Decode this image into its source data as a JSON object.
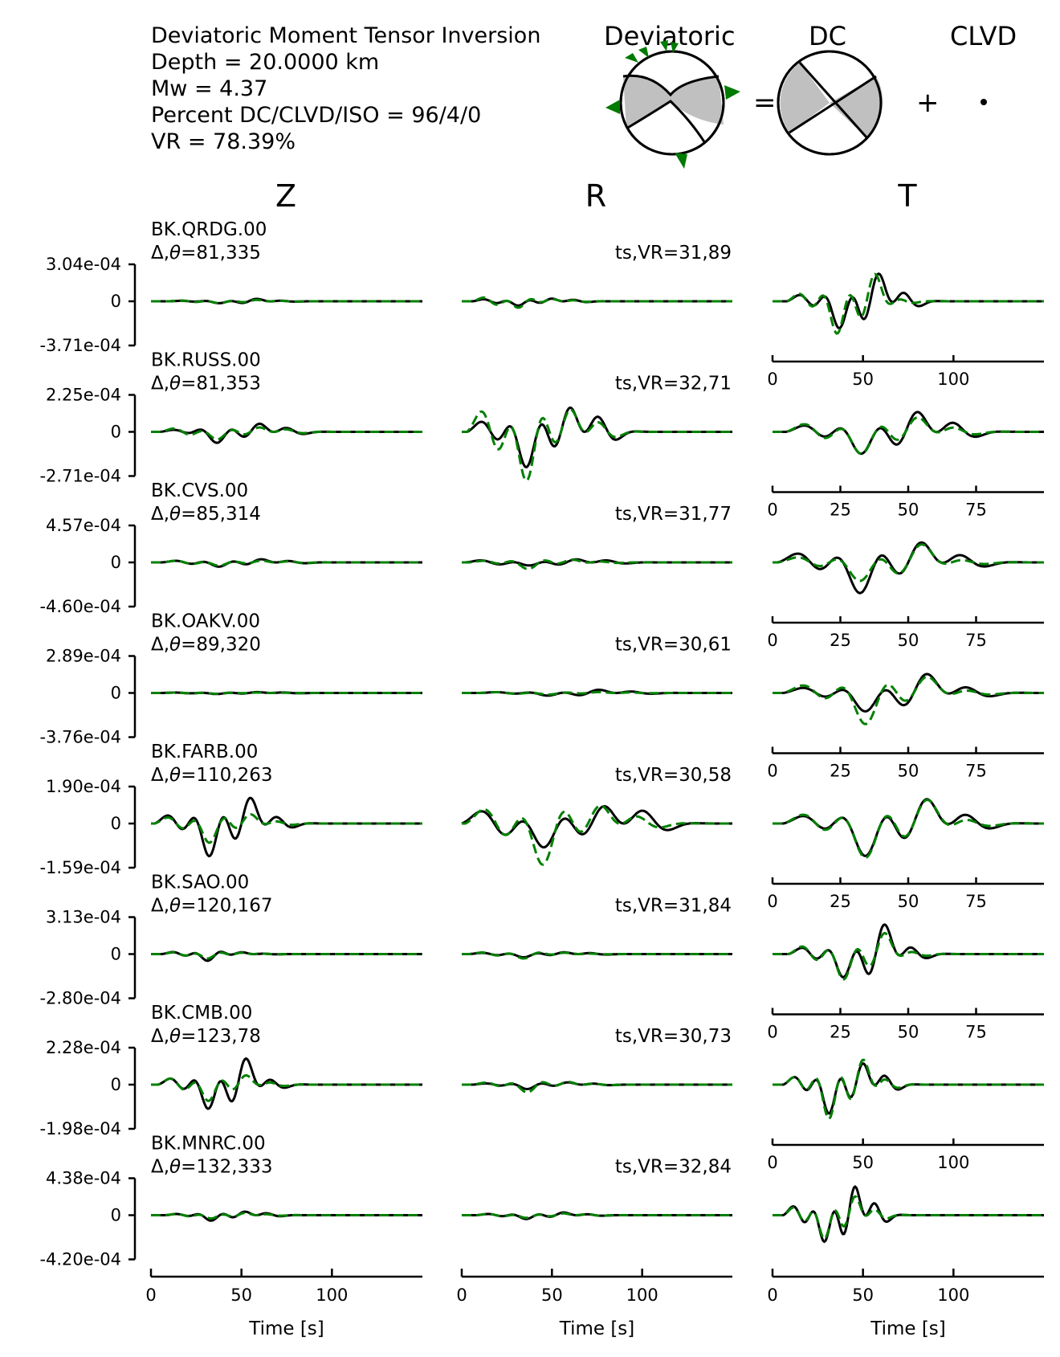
{
  "header": {
    "title": "Deviatoric Moment Tensor Inversion",
    "depth": "Depth = 20.0000 km",
    "mw": "Mw = 4.37",
    "percent": "Percent DC/CLVD/ISO = 96/4/0",
    "vr": "VR = 78.39%"
  },
  "beachballs": {
    "deviatoric_label": "Deviatoric",
    "dc_label": "DC",
    "clvd_label": "CLVD",
    "equals": "=",
    "plus": "+"
  },
  "columns": [
    "Z",
    "R",
    "T"
  ],
  "colors": {
    "observed": "#000000",
    "synthetic": "#008000",
    "fill": "#c0c0c0",
    "station_marker": "#007a00"
  },
  "chart_data": {
    "type": "line",
    "xlabel": "Time [s]",
    "series_styles": [
      {
        "role": "observed",
        "color": "#000000",
        "dash": "solid"
      },
      {
        "role": "synthetic",
        "color": "#008000",
        "dash": "dashed"
      }
    ],
    "stations": [
      {
        "name": "BK.QRDG.00",
        "dist_az": "81,335",
        "ts_vr": "ts,VR=31,89",
        "ymax": "3.04e-04",
        "ymin": "-3.71e-04",
        "yzero": "0",
        "t_ticks": [
          "0",
          "50",
          "100"
        ],
        "t_xmax": 150,
        "Z": {
          "obs": {
            "amp": [
              0.012,
              0.036,
              0.052,
              0.014
            ],
            "period": 22,
            "delay": 10
          },
          "syn": {
            "amp": [
              0.02,
              0.035,
              0.03,
              0.01
            ],
            "period": 22,
            "delay": 10
          }
        },
        "R": {
          "obs": {
            "amp": [
              0.05,
              0.08,
              0.06,
              0.03
            ],
            "period": 20,
            "delay": 6
          },
          "syn": {
            "amp": [
              0.09,
              0.12,
              0.05,
              0.02
            ],
            "period": 20,
            "delay": 6
          }
        },
        "T": {
          "obs": {
            "amp": [
              0.25,
              0.8,
              0.95,
              0.3
            ],
            "period": 23,
            "delay": 8
          },
          "syn": {
            "amp": [
              0.3,
              0.95,
              0.9,
              0.1
            ],
            "period": 22,
            "delay": 8
          }
        }
      },
      {
        "name": "BK.RUSS.00",
        "dist_az": "81,353",
        "ts_vr": "ts,VR=32,71",
        "ymax": "2.25e-04",
        "ymin": "-2.71e-04",
        "yzero": "0",
        "t_ticks": [
          "0",
          "25",
          "50",
          "75"
        ],
        "t_xmax": 100,
        "Z": {
          "obs": {
            "amp": [
              0.05,
              0.2,
              0.18,
              0.08
            ],
            "period": 25,
            "delay": 5
          },
          "syn": {
            "amp": [
              0.08,
              0.14,
              0.1,
              0.05
            ],
            "period": 25,
            "delay": 5
          }
        },
        "R": {
          "obs": {
            "amp": [
              0.25,
              0.65,
              0.55,
              0.3
            ],
            "period": 26,
            "delay": 3
          },
          "syn": {
            "amp": [
              0.5,
              0.9,
              0.5,
              0.2
            ],
            "period": 26,
            "delay": 3
          }
        },
        "T": {
          "obs": {
            "amp": [
              0.25,
              0.65,
              0.7,
              0.3
            ],
            "period": 22,
            "delay": 5
          },
          "syn": {
            "amp": [
              0.3,
              0.65,
              0.5,
              0.15
            ],
            "period": 22,
            "delay": 5
          }
        }
      },
      {
        "name": "BK.CVS.00",
        "dist_az": "85,314",
        "ts_vr": "ts,VR=31,77",
        "ymax": "4.57e-04",
        "ymin": "-4.60e-04",
        "yzero": "0",
        "t_ticks": [
          "0",
          "25",
          "50",
          "75"
        ],
        "t_xmax": 100,
        "Z": {
          "obs": {
            "amp": [
              0.04,
              0.08,
              0.07,
              0.03
            ],
            "period": 25,
            "delay": 6
          },
          "syn": {
            "amp": [
              0.04,
              0.06,
              0.04,
              0.02
            ],
            "period": 25,
            "delay": 6
          }
        },
        "R": {
          "obs": {
            "amp": [
              0.05,
              0.06,
              0.07,
              0.04
            ],
            "period": 28,
            "delay": 2
          },
          "syn": {
            "amp": [
              0.04,
              0.12,
              0.06,
              0.02
            ],
            "period": 26,
            "delay": 4
          }
        },
        "T": {
          "obs": {
            "amp": [
              0.35,
              0.9,
              0.7,
              0.25
            ],
            "period": 24,
            "delay": 2
          },
          "syn": {
            "amp": [
              0.2,
              0.55,
              0.6,
              0.1
            ],
            "period": 24,
            "delay": 2
          }
        }
      },
      {
        "name": "BK.OAKV.00",
        "dist_az": "89,320",
        "ts_vr": "ts,VR=30,61",
        "ymax": "2.89e-04",
        "ymin": "-3.76e-04",
        "yzero": "0",
        "t_ticks": [
          "0",
          "25",
          "50",
          "75"
        ],
        "t_xmax": 100,
        "Z": {
          "obs": {
            "amp": [
              0.01,
              0.02,
              0.02,
              0.01
            ],
            "period": 24,
            "delay": 6
          },
          "syn": {
            "amp": [
              0.01,
              0.015,
              0.01,
              0.005
            ],
            "period": 24,
            "delay": 6
          }
        },
        "R": {
          "obs": {
            "amp": [
              0.02,
              0.05,
              0.07,
              0.03
            ],
            "period": 30,
            "delay": 10
          },
          "syn": {
            "amp": [
              0.02,
              0.03,
              0.02,
              0.01
            ],
            "period": 30,
            "delay": 10
          }
        },
        "T": {
          "obs": {
            "amp": [
              0.2,
              0.55,
              0.65,
              0.2
            ],
            "period": 24,
            "delay": 4
          },
          "syn": {
            "amp": [
              0.3,
              0.9,
              0.55,
              0.1
            ],
            "period": 24,
            "delay": 4
          }
        }
      },
      {
        "name": "BK.FARB.00",
        "dist_az": "110,263",
        "ts_vr": "ts,VR=30,58",
        "ymax": "1.90e-04",
        "ymin": "-1.59e-04",
        "yzero": "0",
        "t_ticks": [
          "0",
          "25",
          "50",
          "75"
        ],
        "t_xmax": 100,
        "Z": {
          "obs": {
            "amp": [
              0.2,
              0.6,
              0.55,
              0.15
            ],
            "period": 24,
            "delay": 2
          },
          "syn": {
            "amp": [
              0.15,
              0.35,
              0.2,
              0.05
            ],
            "period": 24,
            "delay": 2
          }
        },
        "R": {
          "obs": {
            "amp": [
              0.3,
              0.45,
              0.4,
              0.25
            ],
            "period": 36,
            "delay": 0
          },
          "syn": {
            "amp": [
              0.35,
              0.75,
              0.4,
              0.15
            ],
            "period": 34,
            "delay": 2
          }
        },
        "T": {
          "obs": {
            "amp": [
              0.3,
              0.95,
              0.85,
              0.3
            ],
            "period": 24,
            "delay": 4
          },
          "syn": {
            "amp": [
              0.35,
              1.0,
              0.8,
              0.15
            ],
            "period": 24,
            "delay": 4
          }
        }
      },
      {
        "name": "BK.SAO.00",
        "dist_az": "120,167",
        "ts_vr": "ts,VR=31,84",
        "ymax": "3.13e-04",
        "ymin": "-2.80e-04",
        "yzero": "0",
        "t_ticks": [
          "0",
          "25",
          "50",
          "75"
        ],
        "t_xmax": 100,
        "Z": {
          "obs": {
            "amp": [
              0.05,
              0.12,
              0.04,
              0.01
            ],
            "period": 20,
            "delay": 6
          },
          "syn": {
            "amp": [
              0.04,
              0.08,
              0.03,
              0.01
            ],
            "period": 20,
            "delay": 6
          }
        },
        "R": {
          "obs": {
            "amp": [
              0.03,
              0.06,
              0.04,
              0.02
            ],
            "period": 24,
            "delay": 4
          },
          "syn": {
            "amp": [
              0.04,
              0.08,
              0.03,
              0.01
            ],
            "period": 24,
            "delay": 4
          }
        },
        "T": {
          "obs": {
            "amp": [
              0.25,
              0.7,
              1.0,
              0.25
            ],
            "period": 16,
            "delay": 6
          },
          "syn": {
            "amp": [
              0.3,
              0.75,
              0.7,
              0.1
            ],
            "period": 16,
            "delay": 6
          }
        }
      },
      {
        "name": "BK.CMB.00",
        "dist_az": "123,78",
        "ts_vr": "ts,VR=30,73",
        "ymax": "2.28e-04",
        "ymin": "-1.98e-04",
        "yzero": "0",
        "t_ticks": [
          "0",
          "50",
          "100"
        ],
        "t_xmax": 150,
        "Z": {
          "obs": {
            "amp": [
              0.15,
              0.45,
              0.55,
              0.12
            ],
            "period": 22,
            "delay": 4
          },
          "syn": {
            "amp": [
              0.15,
              0.3,
              0.2,
              0.05
            ],
            "period": 22,
            "delay": 4
          }
        },
        "R": {
          "obs": {
            "amp": [
              0.03,
              0.08,
              0.05,
              0.02
            ],
            "period": 24,
            "delay": 6
          },
          "syn": {
            "amp": [
              0.05,
              0.14,
              0.06,
              0.02
            ],
            "period": 24,
            "delay": 6
          }
        },
        "T": {
          "obs": {
            "amp": [
              0.3,
              0.85,
              0.75,
              0.3
            ],
            "period": 20,
            "delay": 6
          },
          "syn": {
            "amp": [
              0.3,
              1.0,
              0.85,
              0.2
            ],
            "period": 20,
            "delay": 6
          }
        }
      },
      {
        "name": "BK.MNRC.00",
        "dist_az": "132,333",
        "ts_vr": "ts,VR=32,84",
        "ymax": "4.38e-04",
        "ymin": "-4.20e-04",
        "yzero": "0",
        "t_ticks": [
          "0",
          "50",
          "100"
        ],
        "t_xmax": 150,
        "Z": {
          "obs": {
            "amp": [
              0.03,
              0.1,
              0.08,
              0.04
            ],
            "period": 20,
            "delay": 8
          },
          "syn": {
            "amp": [
              0.03,
              0.06,
              0.05,
              0.02
            ],
            "period": 20,
            "delay": 8
          }
        },
        "R": {
          "obs": {
            "amp": [
              0.03,
              0.07,
              0.06,
              0.02
            ],
            "period": 22,
            "delay": 8
          },
          "syn": {
            "amp": [
              0.03,
              0.05,
              0.04,
              0.02
            ],
            "period": 22,
            "delay": 8
          }
        },
        "T": {
          "obs": {
            "amp": [
              0.35,
              0.8,
              1.0,
              0.4
            ],
            "period": 18,
            "delay": 6
          },
          "syn": {
            "amp": [
              0.3,
              0.7,
              0.65,
              0.2
            ],
            "period": 18,
            "delay": 6
          }
        }
      }
    ],
    "bottom_ticks": [
      "0",
      "50",
      "100"
    ],
    "bottom_xmax": 150
  }
}
